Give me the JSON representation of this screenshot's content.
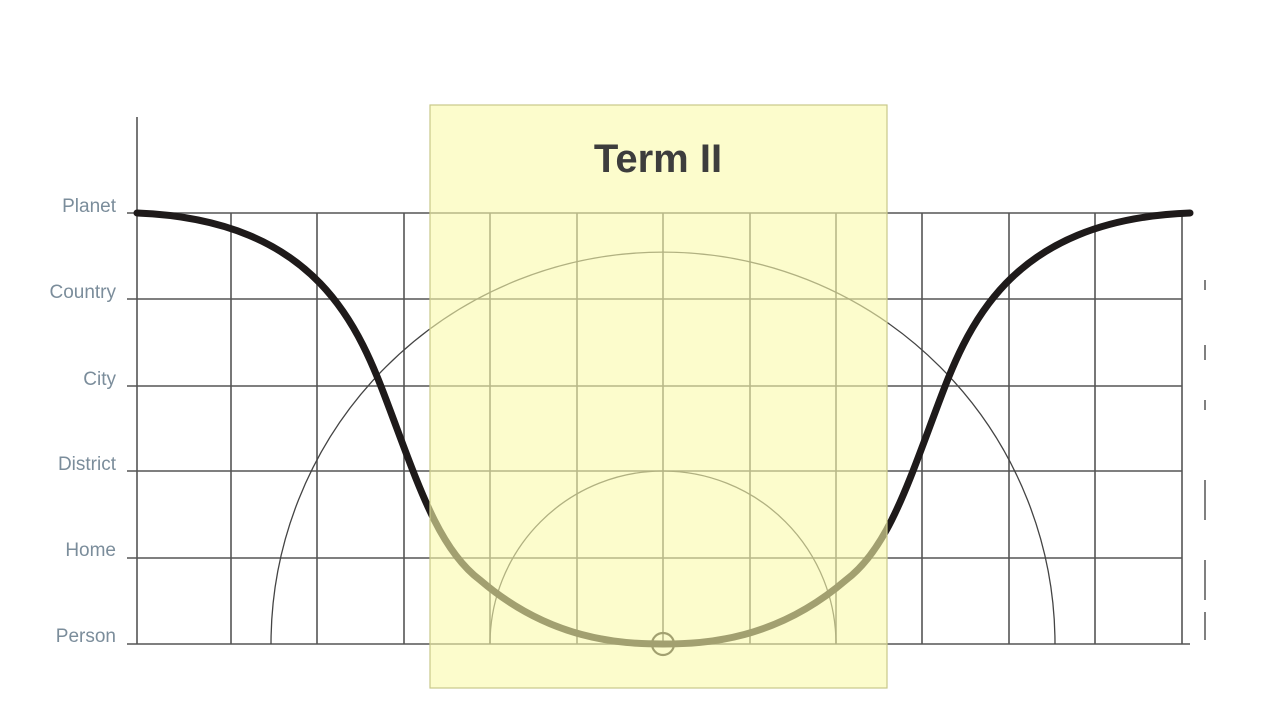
{
  "diagram": {
    "scale_levels": [
      "Person",
      "Home",
      "District",
      "City",
      "Country",
      "Planet"
    ],
    "highlight": {
      "title": "Term II",
      "fill": "#fafaaa",
      "stroke": "#c9c98a"
    },
    "colors": {
      "grid": "#555555",
      "curve": "#1e1a1a",
      "label": "#7b8d9b"
    }
  }
}
